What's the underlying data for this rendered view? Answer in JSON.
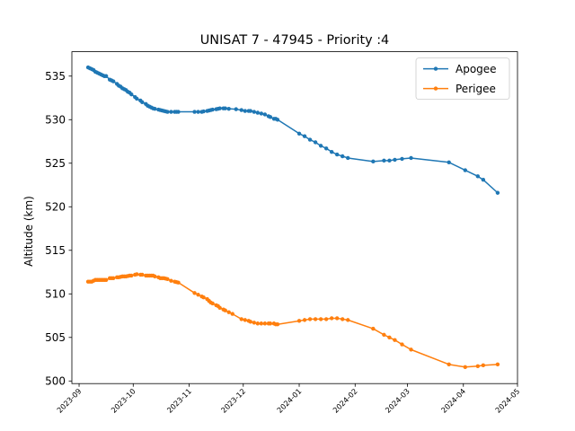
{
  "chart_data": {
    "type": "line",
    "title": "UNISAT 7 - 47945 - Priority :4",
    "xlabel": "",
    "ylabel": "Altitude (km)",
    "x_ticks": [
      "2023-09",
      "2023-10",
      "2023-11",
      "2023-12",
      "2024-01",
      "2024-02",
      "2024-03",
      "2024-04",
      "2024-05"
    ],
    "y_ticks": [
      500,
      505,
      510,
      515,
      520,
      525,
      530,
      535
    ],
    "xlim": [
      "2023-08-28",
      "2024-05-01"
    ],
    "ylim": [
      499.7,
      537.8
    ],
    "grid": false,
    "legend_position": "top-right",
    "series": [
      {
        "name": "Apogee",
        "color": "#1f77b4",
        "points": [
          [
            "2023-09-06",
            536.0
          ],
          [
            "2023-09-07",
            535.9
          ],
          [
            "2023-09-08",
            535.8
          ],
          [
            "2023-09-09",
            535.7
          ],
          [
            "2023-09-10",
            535.5
          ],
          [
            "2023-09-11",
            535.4
          ],
          [
            "2023-09-12",
            535.3
          ],
          [
            "2023-09-13",
            535.2
          ],
          [
            "2023-09-14",
            535.1
          ],
          [
            "2023-09-15",
            535.0
          ],
          [
            "2023-09-16",
            535.0
          ],
          [
            "2023-09-18",
            534.6
          ],
          [
            "2023-09-19",
            534.5
          ],
          [
            "2023-09-20",
            534.4
          ],
          [
            "2023-09-22",
            534.1
          ],
          [
            "2023-09-23",
            533.9
          ],
          [
            "2023-09-24",
            533.8
          ],
          [
            "2023-09-25",
            533.6
          ],
          [
            "2023-09-26",
            533.5
          ],
          [
            "2023-09-27",
            533.4
          ],
          [
            "2023-09-28",
            533.2
          ],
          [
            "2023-09-29",
            533.1
          ],
          [
            "2023-09-30",
            532.9
          ],
          [
            "2023-10-02",
            532.6
          ],
          [
            "2023-10-03",
            532.4
          ],
          [
            "2023-10-05",
            532.2
          ],
          [
            "2023-10-06",
            532.0
          ],
          [
            "2023-10-08",
            531.8
          ],
          [
            "2023-10-09",
            531.6
          ],
          [
            "2023-10-10",
            531.5
          ],
          [
            "2023-10-11",
            531.4
          ],
          [
            "2023-10-12",
            531.3
          ],
          [
            "2023-10-13",
            531.25
          ],
          [
            "2023-10-15",
            531.15
          ],
          [
            "2023-10-16",
            531.1
          ],
          [
            "2023-10-17",
            531.05
          ],
          [
            "2023-10-18",
            531.0
          ],
          [
            "2023-10-19",
            530.95
          ],
          [
            "2023-10-20",
            530.9
          ],
          [
            "2023-10-22",
            530.9
          ],
          [
            "2023-10-24",
            530.9
          ],
          [
            "2023-10-25",
            530.9
          ],
          [
            "2023-10-26",
            530.9
          ],
          [
            "2023-11-04",
            530.9
          ],
          [
            "2023-11-06",
            530.9
          ],
          [
            "2023-11-08",
            530.9
          ],
          [
            "2023-11-09",
            530.95
          ],
          [
            "2023-11-11",
            531.0
          ],
          [
            "2023-11-12",
            531.05
          ],
          [
            "2023-11-13",
            531.1
          ],
          [
            "2023-11-14",
            531.15
          ],
          [
            "2023-11-16",
            531.2
          ],
          [
            "2023-11-17",
            531.25
          ],
          [
            "2023-11-18",
            531.3
          ],
          [
            "2023-11-20",
            531.3
          ],
          [
            "2023-11-21",
            531.3
          ],
          [
            "2023-11-23",
            531.25
          ],
          [
            "2023-11-27",
            531.2
          ],
          [
            "2023-11-30",
            531.1
          ],
          [
            "2023-12-02",
            531.0
          ],
          [
            "2023-12-04",
            531.0
          ],
          [
            "2023-12-05",
            531.0
          ],
          [
            "2023-12-07",
            530.9
          ],
          [
            "2023-12-09",
            530.8
          ],
          [
            "2023-12-11",
            530.7
          ],
          [
            "2023-12-13",
            530.6
          ],
          [
            "2023-12-15",
            530.4
          ],
          [
            "2023-12-16",
            530.3
          ],
          [
            "2023-12-18",
            530.1
          ],
          [
            "2023-12-19",
            530.1
          ],
          [
            "2023-12-20",
            530.0
          ],
          [
            "2024-01-01",
            528.4
          ],
          [
            "2024-01-04",
            528.1
          ],
          [
            "2024-01-07",
            527.7
          ],
          [
            "2024-01-10",
            527.4
          ],
          [
            "2024-01-13",
            527.0
          ],
          [
            "2024-01-16",
            526.7
          ],
          [
            "2024-01-19",
            526.3
          ],
          [
            "2024-01-22",
            526.0
          ],
          [
            "2024-01-25",
            525.8
          ],
          [
            "2024-01-28",
            525.6
          ],
          [
            "2024-02-11",
            525.2
          ],
          [
            "2024-02-17",
            525.3
          ],
          [
            "2024-02-20",
            525.3
          ],
          [
            "2024-02-23",
            525.4
          ],
          [
            "2024-02-27",
            525.5
          ],
          [
            "2024-03-03",
            525.6
          ],
          [
            "2024-03-24",
            525.1
          ],
          [
            "2024-04-02",
            524.2
          ],
          [
            "2024-04-09",
            523.5
          ],
          [
            "2024-04-12",
            523.1
          ],
          [
            "2024-04-20",
            521.6
          ]
        ]
      },
      {
        "name": "Perigee",
        "color": "#ff7f0e",
        "points": [
          [
            "2023-09-06",
            511.4
          ],
          [
            "2023-09-07",
            511.4
          ],
          [
            "2023-09-08",
            511.4
          ],
          [
            "2023-09-09",
            511.5
          ],
          [
            "2023-09-10",
            511.6
          ],
          [
            "2023-09-11",
            511.6
          ],
          [
            "2023-09-12",
            511.6
          ],
          [
            "2023-09-13",
            511.6
          ],
          [
            "2023-09-14",
            511.6
          ],
          [
            "2023-09-15",
            511.6
          ],
          [
            "2023-09-16",
            511.6
          ],
          [
            "2023-09-18",
            511.8
          ],
          [
            "2023-09-19",
            511.8
          ],
          [
            "2023-09-20",
            511.8
          ],
          [
            "2023-09-22",
            511.9
          ],
          [
            "2023-09-23",
            511.9
          ],
          [
            "2023-09-24",
            511.95
          ],
          [
            "2023-09-25",
            512.0
          ],
          [
            "2023-09-26",
            512.0
          ],
          [
            "2023-09-27",
            512.0
          ],
          [
            "2023-09-28",
            512.05
          ],
          [
            "2023-09-29",
            512.1
          ],
          [
            "2023-09-30",
            512.1
          ],
          [
            "2023-10-02",
            512.2
          ],
          [
            "2023-10-03",
            512.25
          ],
          [
            "2023-10-05",
            512.2
          ],
          [
            "2023-10-06",
            512.2
          ],
          [
            "2023-10-08",
            512.1
          ],
          [
            "2023-10-09",
            512.1
          ],
          [
            "2023-10-10",
            512.1
          ],
          [
            "2023-10-11",
            512.1
          ],
          [
            "2023-10-12",
            512.1
          ],
          [
            "2023-10-13",
            512.0
          ],
          [
            "2023-10-15",
            511.9
          ],
          [
            "2023-10-16",
            511.8
          ],
          [
            "2023-10-17",
            511.8
          ],
          [
            "2023-10-18",
            511.8
          ],
          [
            "2023-10-19",
            511.75
          ],
          [
            "2023-10-20",
            511.7
          ],
          [
            "2023-10-22",
            511.5
          ],
          [
            "2023-10-24",
            511.4
          ],
          [
            "2023-10-25",
            511.35
          ],
          [
            "2023-10-26",
            511.3
          ],
          [
            "2023-11-04",
            510.1
          ],
          [
            "2023-11-06",
            509.9
          ],
          [
            "2023-11-08",
            509.7
          ],
          [
            "2023-11-09",
            509.6
          ],
          [
            "2023-11-11",
            509.4
          ],
          [
            "2023-11-12",
            509.2
          ],
          [
            "2023-11-13",
            509.0
          ],
          [
            "2023-11-14",
            508.9
          ],
          [
            "2023-11-16",
            508.7
          ],
          [
            "2023-11-17",
            508.6
          ],
          [
            "2023-11-18",
            508.4
          ],
          [
            "2023-11-20",
            508.2
          ],
          [
            "2023-11-21",
            508.1
          ],
          [
            "2023-11-23",
            507.9
          ],
          [
            "2023-11-25",
            507.7
          ],
          [
            "2023-11-30",
            507.1
          ],
          [
            "2023-12-02",
            507.0
          ],
          [
            "2023-12-04",
            506.9
          ],
          [
            "2023-12-05",
            506.8
          ],
          [
            "2023-12-07",
            506.7
          ],
          [
            "2023-12-09",
            506.6
          ],
          [
            "2023-12-11",
            506.6
          ],
          [
            "2023-12-13",
            506.6
          ],
          [
            "2023-12-15",
            506.6
          ],
          [
            "2023-12-16",
            506.6
          ],
          [
            "2023-12-18",
            506.6
          ],
          [
            "2023-12-19",
            506.5
          ],
          [
            "2023-12-20",
            506.5
          ],
          [
            "2024-01-01",
            506.9
          ],
          [
            "2024-01-04",
            507.0
          ],
          [
            "2024-01-07",
            507.1
          ],
          [
            "2024-01-10",
            507.1
          ],
          [
            "2024-01-13",
            507.1
          ],
          [
            "2024-01-16",
            507.1
          ],
          [
            "2024-01-19",
            507.2
          ],
          [
            "2024-01-22",
            507.2
          ],
          [
            "2024-01-25",
            507.1
          ],
          [
            "2024-01-28",
            507.0
          ],
          [
            "2024-02-11",
            506.0
          ],
          [
            "2024-02-17",
            505.3
          ],
          [
            "2024-02-20",
            505.0
          ],
          [
            "2024-02-23",
            504.7
          ],
          [
            "2024-02-27",
            504.2
          ],
          [
            "2024-03-03",
            503.6
          ],
          [
            "2024-03-24",
            501.9
          ],
          [
            "2024-04-02",
            501.6
          ],
          [
            "2024-04-09",
            501.7
          ],
          [
            "2024-04-12",
            501.8
          ],
          [
            "2024-04-20",
            501.9
          ]
        ]
      }
    ]
  }
}
